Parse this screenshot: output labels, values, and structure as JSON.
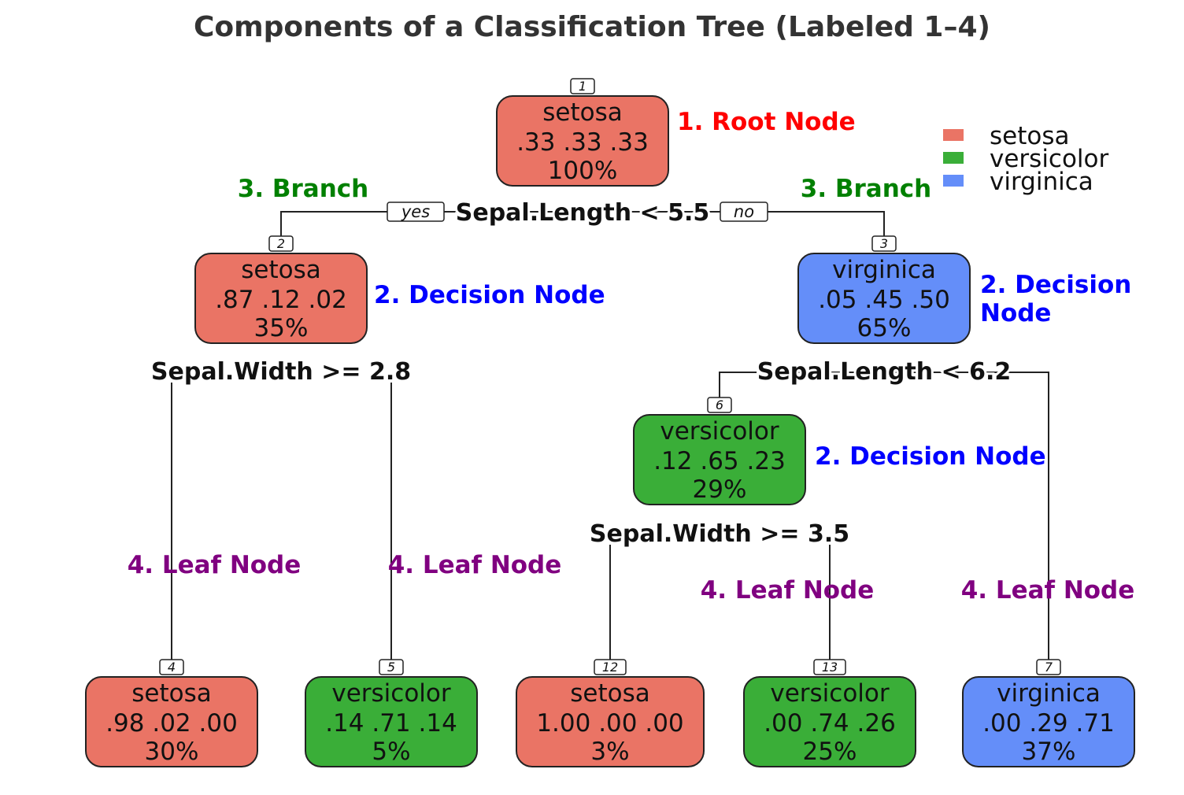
{
  "title": "Components of a Classification Tree (Labeled 1–4)",
  "colors": {
    "setosa": "#EA7465",
    "versicolor": "#3AAE38",
    "virginica": "#648EF9"
  },
  "legend": [
    {
      "label": "setosa",
      "color": "#EA7465"
    },
    {
      "label": "versicolor",
      "color": "#3AAE38"
    },
    {
      "label": "virginica",
      "color": "#648EF9"
    }
  ],
  "nodes": [
    {
      "id": "1",
      "class": "setosa",
      "probs": ".33  .33  .33",
      "pct": "100%"
    },
    {
      "id": "2",
      "class": "setosa",
      "probs": ".87  .12  .02",
      "pct": "35%"
    },
    {
      "id": "3",
      "class": "virginica",
      "probs": ".05  .45  .50",
      "pct": "65%"
    },
    {
      "id": "6",
      "class": "versicolor",
      "probs": ".12  .65  .23",
      "pct": "29%"
    },
    {
      "id": "4",
      "class": "setosa",
      "probs": ".98  .02  .00",
      "pct": "30%"
    },
    {
      "id": "5",
      "class": "versicolor",
      "probs": ".14  .71  .14",
      "pct": "5%"
    },
    {
      "id": "12",
      "class": "setosa",
      "probs": "1.00  .00  .00",
      "pct": "3%"
    },
    {
      "id": "13",
      "class": "versicolor",
      "probs": ".00  .74  .26",
      "pct": "25%"
    },
    {
      "id": "7",
      "class": "virginica",
      "probs": ".00  .29  .71",
      "pct": "37%"
    }
  ],
  "splits": [
    {
      "node": "1",
      "text": "Sepal.Length < 5.5"
    },
    {
      "node": "2",
      "text": "Sepal.Width >= 2.8"
    },
    {
      "node": "3",
      "text": "Sepal.Length < 6.2"
    },
    {
      "node": "6",
      "text": "Sepal.Width >= 3.5"
    }
  ],
  "edge_labels": {
    "yes": "yes",
    "no": "no"
  },
  "annotations": [
    {
      "text": "1. Root Node",
      "color": "#FF0000"
    },
    {
      "text": "3. Branch",
      "color": "#008000"
    },
    {
      "text": "3. Branch",
      "color": "#008000"
    },
    {
      "text": "2. Decision Node",
      "color": "#0000FF"
    },
    {
      "text": "2. Decision Node",
      "color": "#0000FF"
    },
    {
      "text": "2. Decision Node",
      "color": "#0000FF"
    },
    {
      "text": "4. Leaf Node",
      "color": "#800080"
    },
    {
      "text": "4. Leaf Node",
      "color": "#800080"
    },
    {
      "text": "4. Leaf Node",
      "color": "#800080"
    },
    {
      "text": "4. Leaf Node",
      "color": "#800080"
    }
  ]
}
